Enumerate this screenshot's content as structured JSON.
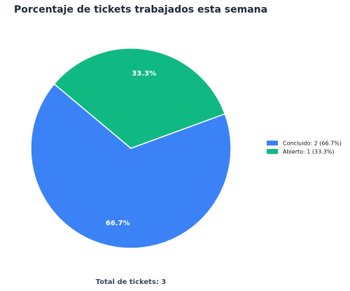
{
  "chart_data": {
    "type": "pie",
    "title": "Porcentaje de tickets trabajados esta semana",
    "categories": [
      "Concluido: 2 (66.7%)",
      "Abierto: 1 (33.3%)"
    ],
    "values": [
      66.7,
      33.3
    ],
    "value_labels": [
      "66.7%",
      "33.3%"
    ],
    "colors": [
      "#3b82f6",
      "#10b981"
    ],
    "legend": "right",
    "footer": "Total de tickets: 3"
  }
}
